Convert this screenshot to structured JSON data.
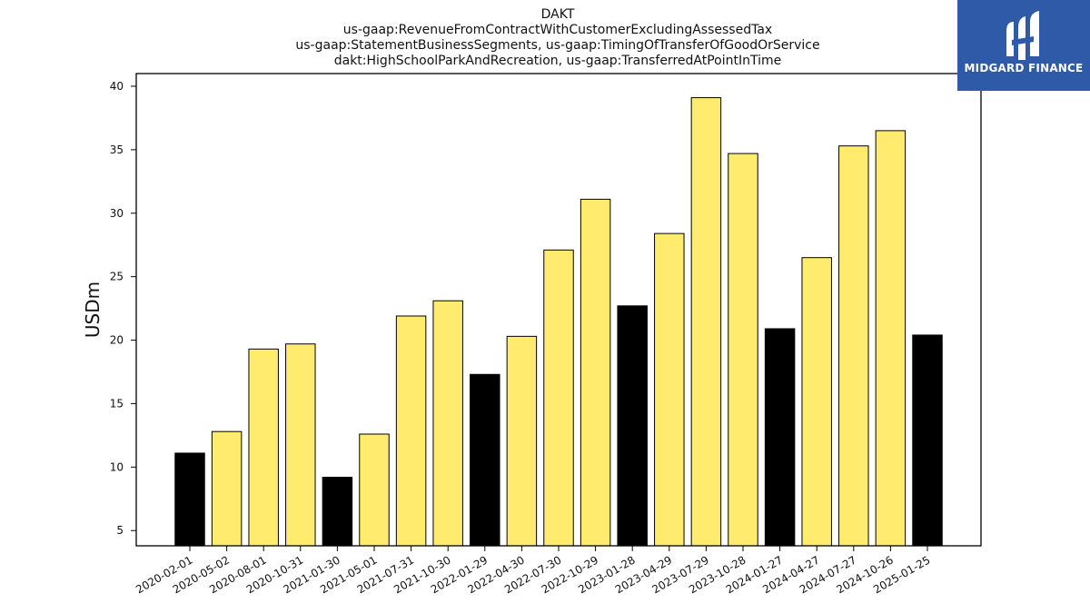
{
  "logo": {
    "text": "MIDGARD FINANCE",
    "icon": "midgard-logo-icon",
    "background": "#2f5aa8"
  },
  "chart_data": {
    "type": "bar",
    "title_lines": [
      "DAKT",
      "us-gaap:RevenueFromContractWithCustomerExcludingAssessedTax",
      "us-gaap:StatementBusinessSegments, us-gaap:TimingOfTransferOfGoodOrService",
      "dakt:HighSchoolParkAndRecreation, us-gaap:TransferredAtPointInTime"
    ],
    "xlabel": "",
    "ylabel": "USDm",
    "ylim": [
      3.8,
      41
    ],
    "yticks": [
      5,
      10,
      15,
      20,
      25,
      30,
      35,
      40
    ],
    "grid": false,
    "colors": {
      "highlight": "#000000",
      "normal": "#ffec6e",
      "edge": "#000000"
    },
    "categories": [
      "2020-02-01",
      "2020-05-02",
      "2020-08-01",
      "2020-10-31",
      "2021-01-30",
      "2021-05-01",
      "2021-07-31",
      "2021-10-30",
      "2022-01-29",
      "2022-04-30",
      "2022-07-30",
      "2022-10-29",
      "2023-01-28",
      "2023-04-29",
      "2023-07-29",
      "2023-10-28",
      "2024-01-27",
      "2024-04-27",
      "2024-07-27",
      "2024-10-26",
      "2025-01-25"
    ],
    "values": [
      11.1,
      12.8,
      19.3,
      19.7,
      9.2,
      12.6,
      21.9,
      23.1,
      17.3,
      20.3,
      27.1,
      31.1,
      22.7,
      28.4,
      39.1,
      34.7,
      20.9,
      26.5,
      35.3,
      36.5,
      20.4
    ],
    "highlighted": [
      true,
      false,
      false,
      false,
      true,
      false,
      false,
      false,
      true,
      false,
      false,
      false,
      true,
      false,
      false,
      false,
      true,
      false,
      false,
      false,
      true
    ]
  }
}
